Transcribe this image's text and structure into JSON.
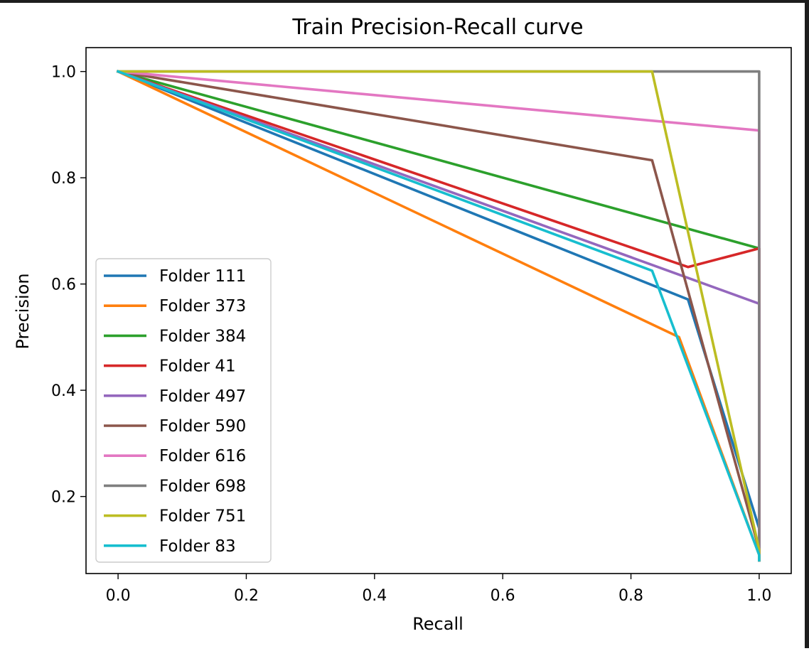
{
  "chart_data": {
    "type": "line",
    "title": "Train Precision-Recall curve",
    "xlabel": "Recall",
    "ylabel": "Precision",
    "xlim": [
      -0.05,
      1.05
    ],
    "ylim": [
      0.055,
      1.045
    ],
    "xticks": [
      0.0,
      0.2,
      0.4,
      0.6,
      0.8,
      1.0
    ],
    "xtick_labels": [
      "0.0",
      "0.2",
      "0.4",
      "0.6",
      "0.8",
      "1.0"
    ],
    "yticks": [
      0.2,
      0.4,
      0.6,
      0.8,
      1.0
    ],
    "ytick_labels": [
      "0.2",
      "0.4",
      "0.6",
      "0.8",
      "1.0"
    ],
    "grid": false,
    "legend_position": "lower-left",
    "series": [
      {
        "name": "Folder 111",
        "color": "#1f77b4",
        "x": [
          0.0,
          0.889,
          1.0,
          1.0
        ],
        "y": [
          1.0,
          0.571,
          0.14,
          0.08
        ]
      },
      {
        "name": "Folder 373",
        "color": "#ff7f0e",
        "x": [
          0.0,
          0.875,
          1.0,
          1.0
        ],
        "y": [
          1.0,
          0.5,
          0.09,
          0.08
        ]
      },
      {
        "name": "Folder 384",
        "color": "#2ca02c",
        "x": [
          0.0,
          1.0,
          1.0
        ],
        "y": [
          1.0,
          0.667,
          0.08
        ]
      },
      {
        "name": "Folder 41",
        "color": "#d62728",
        "x": [
          0.0,
          0.889,
          1.0,
          1.0
        ],
        "y": [
          1.0,
          0.632,
          0.667,
          0.08
        ]
      },
      {
        "name": "Folder 497",
        "color": "#9467bd",
        "x": [
          0.0,
          1.0,
          1.0
        ],
        "y": [
          1.0,
          0.563,
          0.08
        ]
      },
      {
        "name": "Folder 590",
        "color": "#8c564b",
        "x": [
          0.0,
          0.833,
          1.0,
          1.0
        ],
        "y": [
          1.0,
          0.833,
          0.1,
          0.08
        ]
      },
      {
        "name": "Folder 616",
        "color": "#e377c2",
        "x": [
          0.0,
          1.0,
          1.0
        ],
        "y": [
          1.0,
          0.889,
          0.08
        ]
      },
      {
        "name": "Folder 698",
        "color": "#7f7f7f",
        "x": [
          0.0,
          1.0,
          1.0
        ],
        "y": [
          1.0,
          1.0,
          0.08
        ]
      },
      {
        "name": "Folder 751",
        "color": "#bcbd22",
        "x": [
          0.0,
          0.833,
          1.0,
          1.0
        ],
        "y": [
          1.0,
          1.0,
          0.1,
          0.08
        ]
      },
      {
        "name": "Folder 83",
        "color": "#17becf",
        "x": [
          0.0,
          0.833,
          1.0,
          1.0
        ],
        "y": [
          1.0,
          0.625,
          0.09,
          0.08
        ]
      }
    ]
  }
}
